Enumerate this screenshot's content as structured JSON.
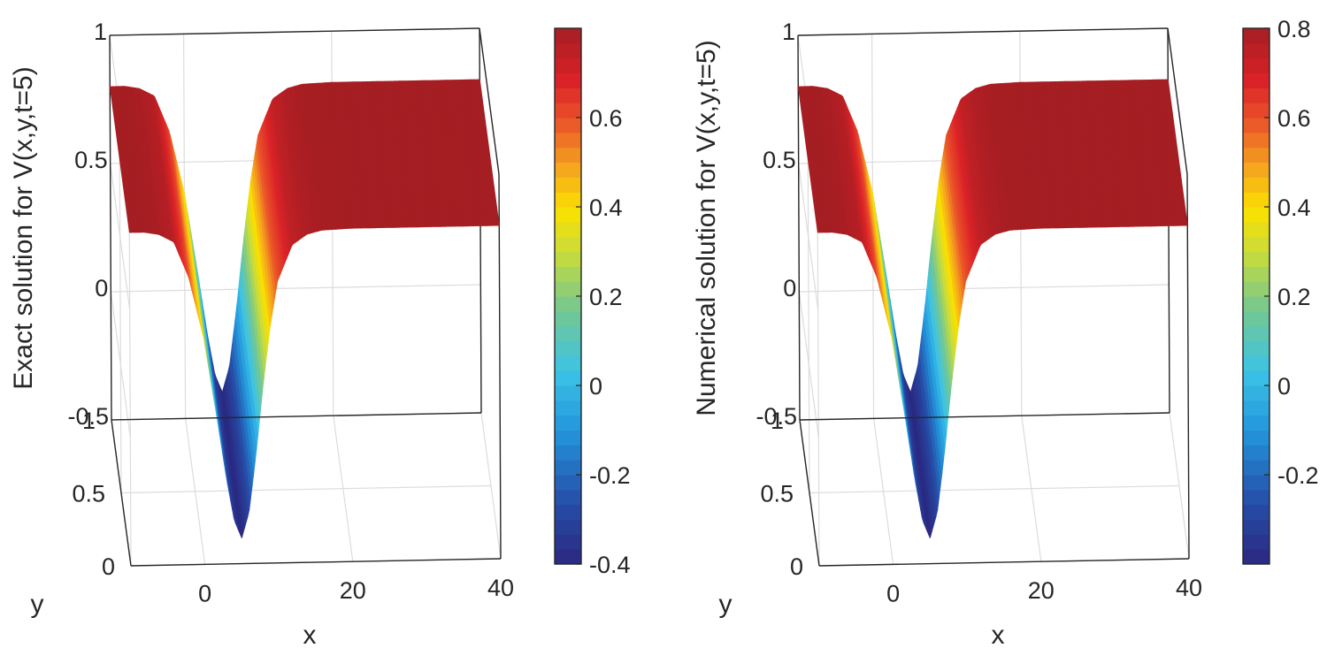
{
  "chart_data": [
    {
      "type": "surface",
      "title": "",
      "xlabel": "x",
      "ylabel": "y",
      "zlabel": "Exact solution for V(x,y,t=5)",
      "x_ticks": [
        0,
        20,
        40
      ],
      "y_ticks": [
        0,
        0.5,
        1
      ],
      "z_ticks": [
        -0.5,
        0,
        0.5,
        1
      ],
      "xlim": [
        -10,
        40
      ],
      "ylim": [
        0,
        1
      ],
      "zlim": [
        -0.5,
        1
      ],
      "grid": true,
      "colorbar": {
        "ticks": [
          -0.4,
          -0.2,
          0,
          0.2,
          0.4,
          0.6
        ],
        "range": [
          -0.4,
          0.8
        ],
        "colormap": "jet"
      },
      "surface_profile": {
        "x": [
          -10,
          -8,
          -6,
          -4,
          -2,
          0,
          1,
          2,
          3,
          4,
          5,
          6,
          7,
          8,
          9,
          10,
          12,
          14,
          16,
          20,
          30,
          40
        ],
        "v": [
          0.8,
          0.8,
          0.79,
          0.76,
          0.62,
          0.38,
          0.2,
          0.02,
          -0.17,
          -0.33,
          -0.4,
          -0.3,
          -0.07,
          0.2,
          0.43,
          0.6,
          0.74,
          0.78,
          0.795,
          0.8,
          0.8,
          0.8
        ]
      }
    },
    {
      "type": "surface",
      "title": "",
      "xlabel": "x",
      "ylabel": "y",
      "zlabel": "Numerical solution for V(x,y,t=5)",
      "x_ticks": [
        0,
        20,
        40
      ],
      "y_ticks": [
        0,
        0.5,
        1
      ],
      "z_ticks": [
        -0.5,
        0,
        0.5,
        1
      ],
      "xlim": [
        -10,
        40
      ],
      "ylim": [
        0,
        1
      ],
      "zlim": [
        -0.5,
        1
      ],
      "grid": true,
      "colorbar": {
        "ticks": [
          -0.2,
          0,
          0.2,
          0.4,
          0.6,
          0.8
        ],
        "range": [
          -0.4,
          0.8
        ],
        "colormap": "jet"
      },
      "surface_profile": {
        "x": [
          -10,
          -8,
          -6,
          -4,
          -2,
          0,
          1,
          2,
          3,
          4,
          5,
          6,
          7,
          8,
          9,
          10,
          12,
          14,
          16,
          20,
          30,
          40
        ],
        "v": [
          0.8,
          0.8,
          0.79,
          0.76,
          0.62,
          0.38,
          0.2,
          0.02,
          -0.17,
          -0.33,
          -0.4,
          -0.3,
          -0.07,
          0.2,
          0.43,
          0.6,
          0.74,
          0.78,
          0.795,
          0.8,
          0.8,
          0.8
        ]
      }
    }
  ]
}
